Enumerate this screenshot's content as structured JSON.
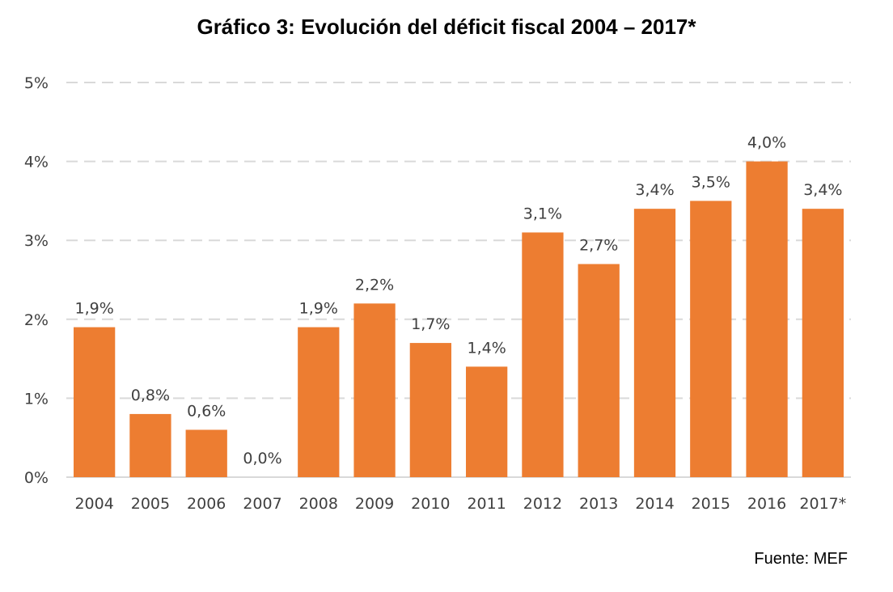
{
  "chart_data": {
    "type": "bar",
    "title": "Gráfico 3: Evolución del déficit fiscal 2004 – 2017*",
    "categories": [
      "2004",
      "2005",
      "2006",
      "2007",
      "2008",
      "2009",
      "2010",
      "2011",
      "2012",
      "2013",
      "2014",
      "2015",
      "2016",
      "2017*"
    ],
    "values": [
      1.9,
      0.8,
      0.6,
      0.0,
      1.9,
      2.2,
      1.7,
      1.4,
      3.1,
      2.7,
      3.4,
      3.5,
      4.0,
      3.4
    ],
    "data_labels": [
      "1,9%",
      "0,8%",
      "0,6%",
      "0,0%",
      "1,9%",
      "2,2%",
      "1,7%",
      "1,4%",
      "3,1%",
      "2,7%",
      "3,4%",
      "3,5%",
      "4,0%",
      "3,4%"
    ],
    "y_ticks": [
      "0%",
      "1%",
      "2%",
      "3%",
      "4%",
      "5%"
    ],
    "ylim": [
      0,
      5
    ],
    "grid": true,
    "bar_color": "#ED7D31",
    "source": "Fuente: MEF"
  }
}
